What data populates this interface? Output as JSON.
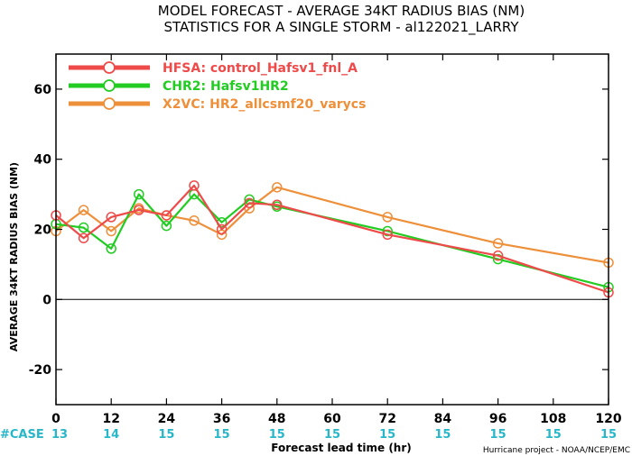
{
  "titles": {
    "line1": "MODEL FORECAST - AVERAGE 34KT RADIUS BIAS (NM)",
    "line2": "STATISTICS FOR A SINGLE STORM - al122021_LARRY"
  },
  "credit": "Hurricane project - NOAA/NCEP/EMC",
  "case_label": "#CASE",
  "cases": [
    {
      "x": 0,
      "n": "13"
    },
    {
      "x": 12,
      "n": "14"
    },
    {
      "x": 24,
      "n": "15"
    },
    {
      "x": 36,
      "n": "15"
    },
    {
      "x": 48,
      "n": "15"
    },
    {
      "x": 60,
      "n": "15"
    },
    {
      "x": 72,
      "n": "15"
    },
    {
      "x": 84,
      "n": "15"
    },
    {
      "x": 96,
      "n": "15"
    },
    {
      "x": 108,
      "n": "15"
    },
    {
      "x": 120,
      "n": "15"
    }
  ],
  "colors": {
    "HFSA": "#ef4a4a",
    "CHR2": "#22cc22",
    "X2VC": "#ee8f3a",
    "case": "#27b7c9"
  },
  "chart_data": {
    "type": "line",
    "title": "MODEL FORECAST - AVERAGE 34KT RADIUS BIAS (NM)",
    "subtitle": "STATISTICS FOR A SINGLE STORM - al122021_LARRY",
    "xlabel": "Forecast lead time (hr)",
    "ylabel": "AVERAGE 34KT RADIUS BIAS (NM)",
    "xlim": [
      0,
      120
    ],
    "ylim": [
      -30,
      70
    ],
    "xticks": [
      0,
      12,
      24,
      36,
      48,
      60,
      72,
      84,
      96,
      108,
      120
    ],
    "yticks": [
      -20,
      0,
      20,
      40,
      60
    ],
    "zero_line": true,
    "legend_position": "top-left",
    "series": [
      {
        "key": "HFSA",
        "name": "HFSA: control_Hafsv1_fnl_A",
        "x": [
          0,
          6,
          12,
          18,
          24,
          30,
          36,
          42,
          48,
          72,
          96,
          120
        ],
        "y": [
          24,
          17.5,
          23.5,
          25.5,
          24,
          32.5,
          20,
          27.5,
          27,
          18.5,
          12.5,
          2
        ]
      },
      {
        "key": "CHR2",
        "name": "CHR2: Hafsv1HR2",
        "x": [
          0,
          6,
          12,
          18,
          24,
          30,
          36,
          42,
          48,
          72,
          96,
          120
        ],
        "y": [
          21.5,
          20.5,
          14.5,
          30,
          21,
          30,
          22,
          28.5,
          26.5,
          19.5,
          11.5,
          3.5
        ]
      },
      {
        "key": "X2VC",
        "name": "X2VC: HR2_allcsmf20_varycs",
        "x": [
          0,
          6,
          12,
          18,
          24,
          30,
          36,
          42,
          48,
          72,
          96,
          120
        ],
        "y": [
          19.5,
          25.5,
          19.5,
          26,
          24,
          22.5,
          18.5,
          26,
          32,
          23.5,
          16,
          10.5
        ]
      }
    ]
  }
}
